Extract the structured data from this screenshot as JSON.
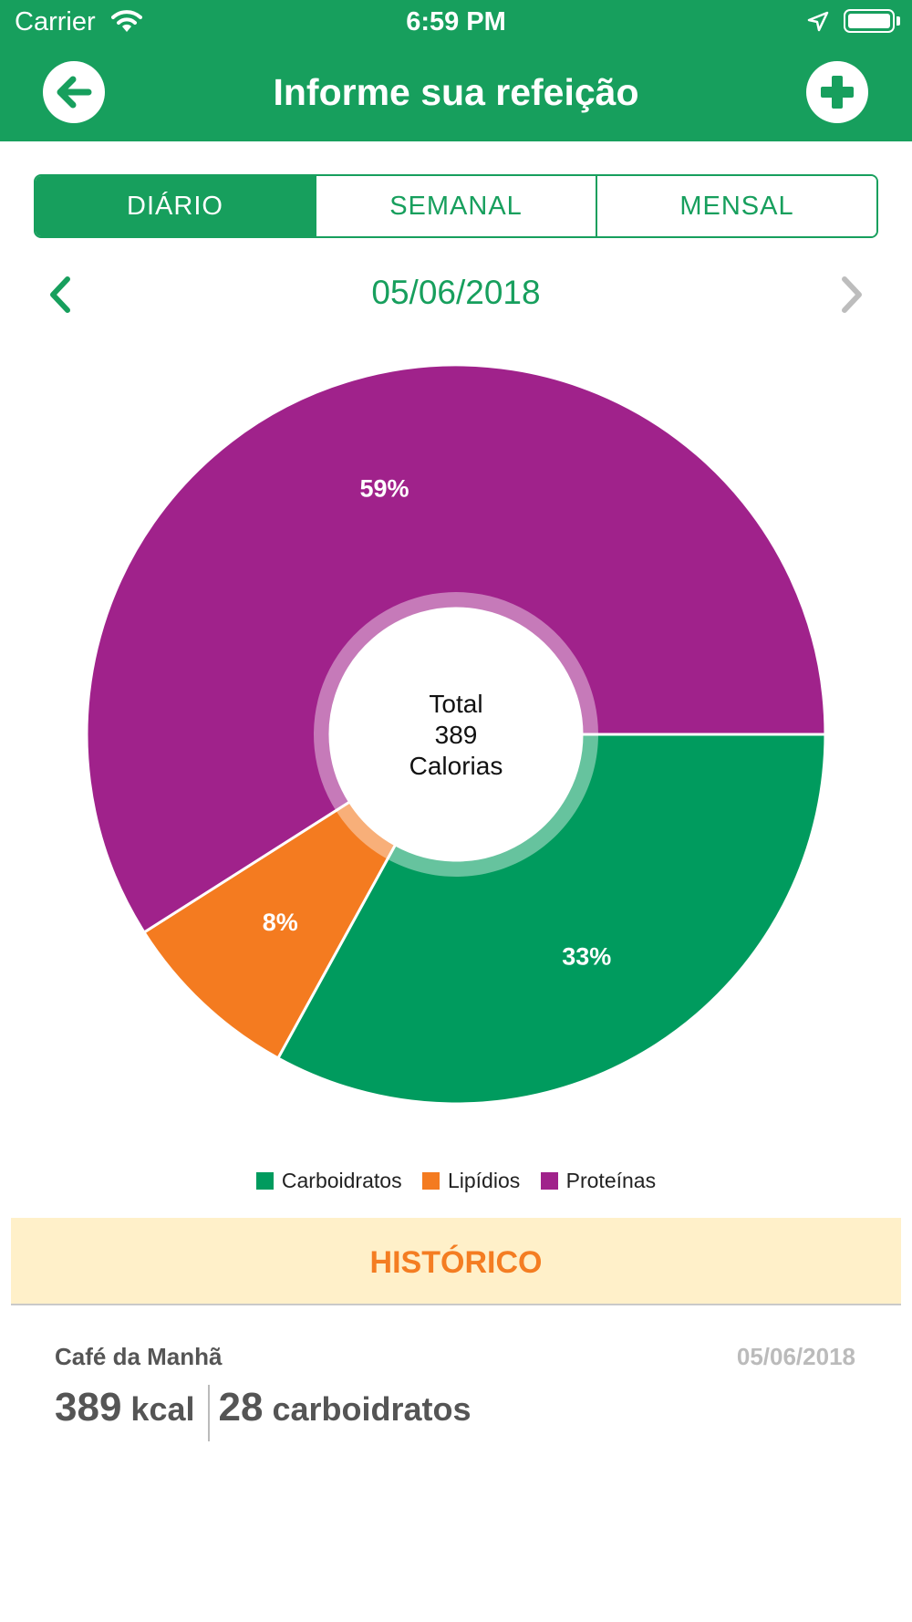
{
  "status_bar": {
    "carrier": "Carrier",
    "time": "6:59 PM"
  },
  "nav": {
    "title": "Informe sua refeição",
    "back_icon": "arrow-left-icon",
    "add_icon": "plus-icon"
  },
  "tabs": [
    {
      "label": "DIÁRIO",
      "active": true
    },
    {
      "label": "SEMANAL",
      "active": false
    },
    {
      "label": "MENSAL",
      "active": false
    }
  ],
  "date_nav": {
    "date": "05/06/2018"
  },
  "chart_data": {
    "type": "pie",
    "center_text": [
      "Total",
      "389",
      "Calorias"
    ],
    "slices": [
      {
        "name": "Carboidratos",
        "percent": 33,
        "label": "33%",
        "color": "#009b5e"
      },
      {
        "name": "Lipídios",
        "percent": 8,
        "label": "8%",
        "color": "#f47b20"
      },
      {
        "name": "Proteínas",
        "percent": 59,
        "label": "59%",
        "color": "#a0228b"
      }
    ],
    "legend_position": "bottom"
  },
  "history": {
    "title": "HISTÓRICO",
    "entries": [
      {
        "meal": "Café da Manhã",
        "date": "05/06/2018",
        "kcal_value": "389",
        "kcal_unit": "kcal",
        "carb_value": "28",
        "carb_unit": "carboidratos"
      }
    ]
  },
  "colors": {
    "primary": "#179f5d",
    "accent": "#f47d22",
    "history_bg": "#fff0c9"
  }
}
